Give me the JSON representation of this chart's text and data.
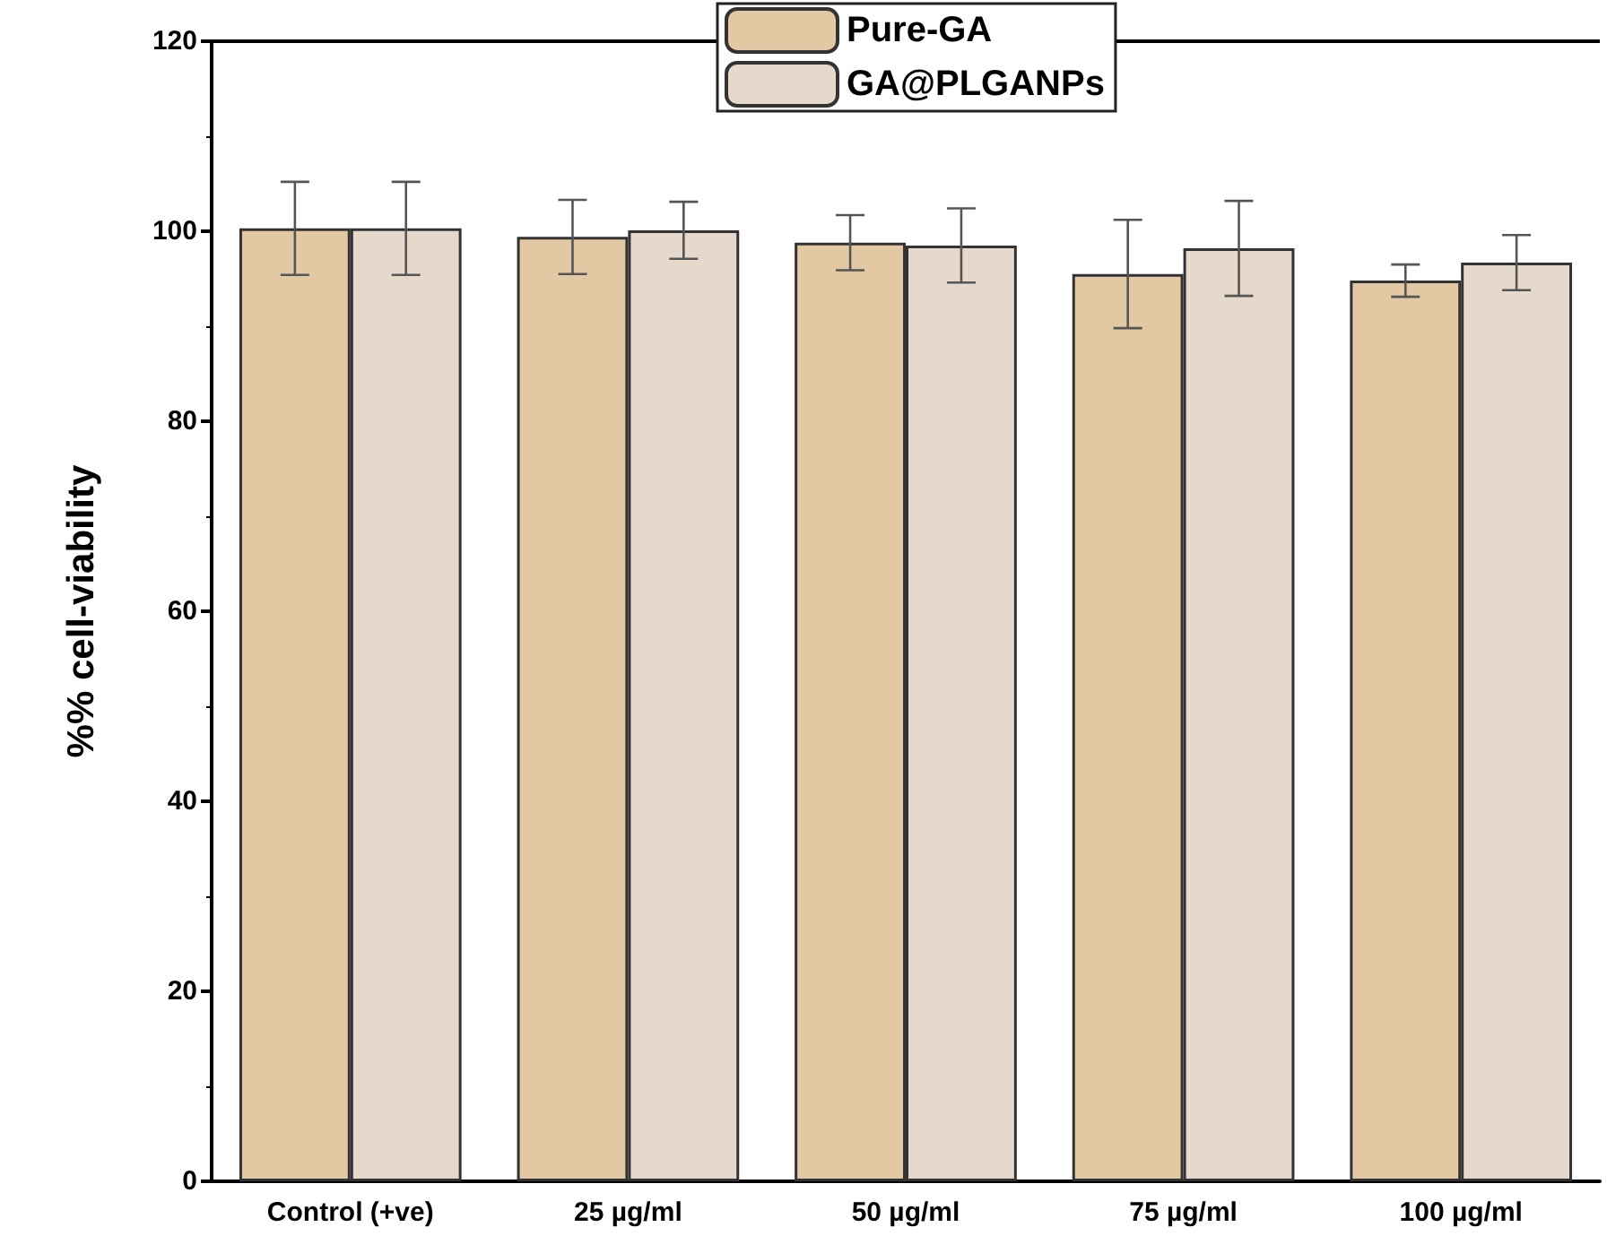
{
  "chart_data": {
    "type": "bar",
    "ylabel": "%% cell-viability",
    "categories": [
      "Control (+ve)",
      "25 µg/ml",
      "50 µg/ml",
      "75 µg/ml",
      "100 µg/ml"
    ],
    "series": [
      {
        "name": "Pure-GA",
        "color": "#e3c8a4",
        "values": [
          100.3,
          99.4,
          98.8,
          95.5,
          94.8
        ],
        "errors": [
          4.9,
          3.9,
          2.9,
          5.7,
          1.7
        ]
      },
      {
        "name": "GA@PLGANPs",
        "color": "#e6d9cb",
        "values": [
          100.3,
          100.1,
          98.5,
          98.2,
          96.7
        ],
        "errors": [
          4.9,
          3,
          3.9,
          5,
          2.9
        ]
      }
    ],
    "ylim": [
      0,
      120
    ],
    "yticks": [
      0,
      20,
      40,
      60,
      80,
      100,
      120
    ],
    "grid": false,
    "legend": "top"
  }
}
